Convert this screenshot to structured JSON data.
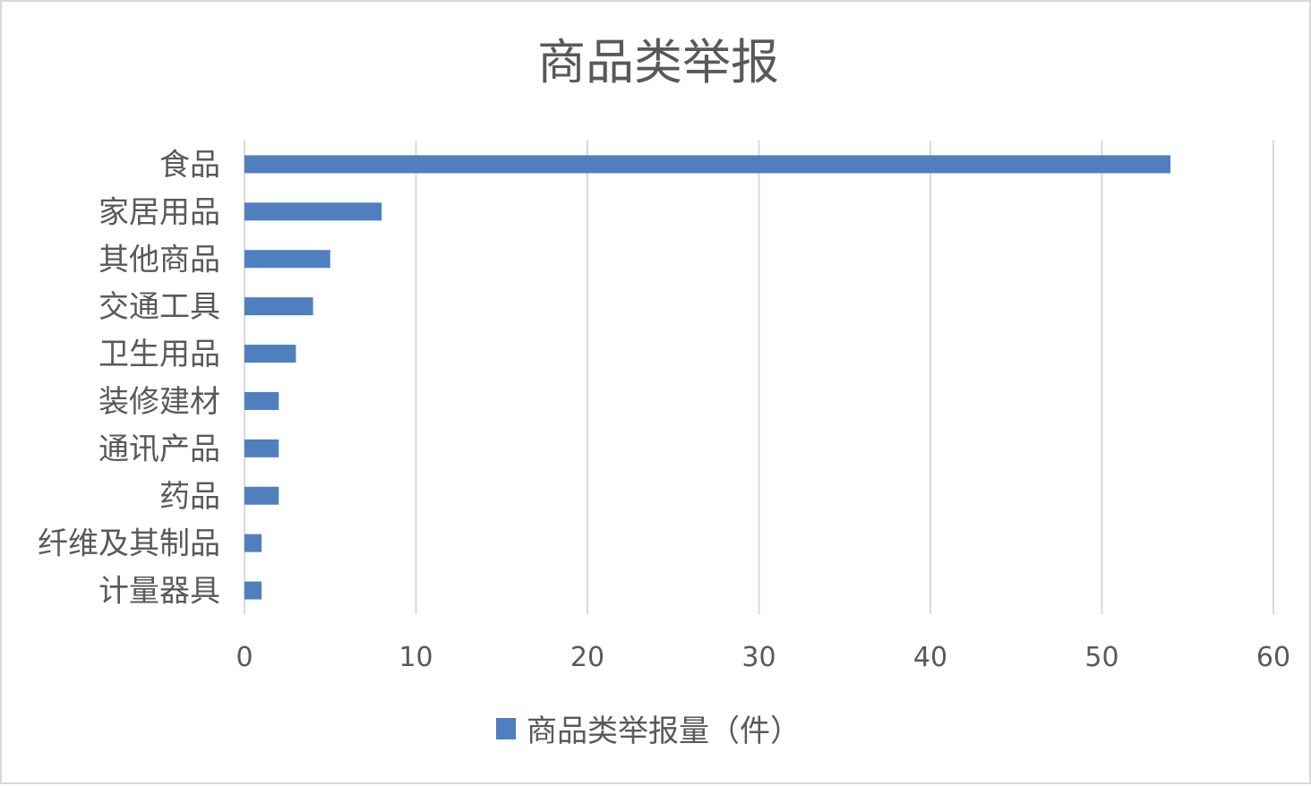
{
  "chart_data": {
    "type": "bar",
    "orientation": "horizontal",
    "title": "商品类举报",
    "categories": [
      "食品",
      "家居用品",
      "其他商品",
      "交通工具",
      "卫生用品",
      "装修建材",
      "通讯产品",
      "药品",
      "纤维及其制品",
      "计量器具"
    ],
    "series": [
      {
        "name": "商品类举报量（件）",
        "values": [
          54,
          8,
          5,
          4,
          3,
          2,
          2,
          2,
          1,
          1
        ]
      }
    ],
    "xlim": [
      0,
      60
    ],
    "xticks": [
      0,
      10,
      20,
      30,
      40,
      50,
      60
    ],
    "grid": true,
    "legend_position": "bottom",
    "colors": {
      "bar": "#4f7fbf",
      "grid": "#d9d9d9",
      "text": "#595959"
    }
  }
}
